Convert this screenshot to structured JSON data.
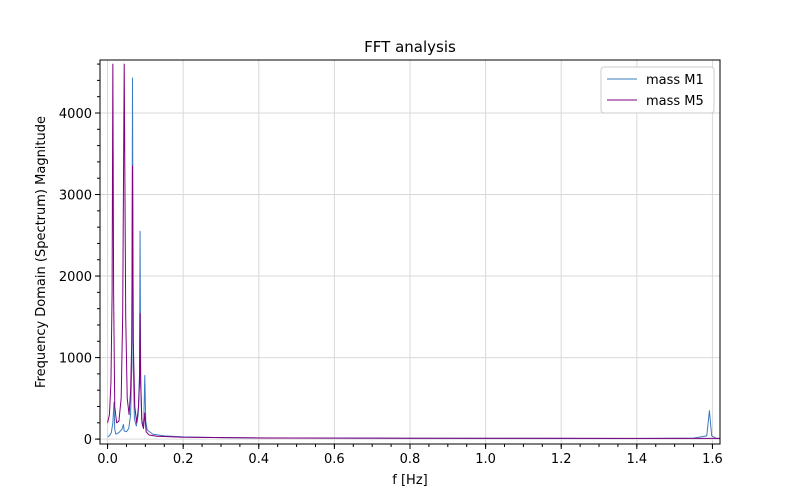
{
  "chart_data": {
    "type": "line",
    "title": "FFT analysis",
    "xlabel": "f [Hz]",
    "ylabel": "Frequency Domain (Spectrum) Magnitude",
    "xlim": [
      -0.02,
      1.62
    ],
    "ylim": [
      -60,
      4650
    ],
    "xticks": [
      0.0,
      0.2,
      0.4,
      0.6,
      0.8,
      1.0,
      1.2,
      1.4,
      1.6
    ],
    "xtick_labels": [
      "0.0",
      "0.2",
      "0.4",
      "0.6",
      "0.8",
      "1.0",
      "1.2",
      "1.4",
      "1.6"
    ],
    "yticks": [
      0,
      1000,
      2000,
      3000,
      4000
    ],
    "ytick_labels": [
      "0",
      "1000",
      "2000",
      "3000",
      "4000"
    ],
    "grid": true,
    "legend_position": "top-right",
    "series": [
      {
        "name": "mass M1",
        "color": "#3b7bbf",
        "points": [
          [
            0.0,
            30
          ],
          [
            0.005,
            40
          ],
          [
            0.01,
            80
          ],
          [
            0.014,
            200
          ],
          [
            0.017,
            450
          ],
          [
            0.019,
            120
          ],
          [
            0.022,
            60
          ],
          [
            0.03,
            80
          ],
          [
            0.038,
            120
          ],
          [
            0.042,
            180
          ],
          [
            0.044,
            100
          ],
          [
            0.05,
            90
          ],
          [
            0.056,
            130
          ],
          [
            0.061,
            300
          ],
          [
            0.064,
            900
          ],
          [
            0.066,
            4430
          ],
          [
            0.068,
            900
          ],
          [
            0.071,
            250
          ],
          [
            0.076,
            160
          ],
          [
            0.081,
            300
          ],
          [
            0.0845,
            800
          ],
          [
            0.086,
            2550
          ],
          [
            0.0875,
            800
          ],
          [
            0.09,
            250
          ],
          [
            0.093,
            160
          ],
          [
            0.096,
            250
          ],
          [
            0.0985,
            780
          ],
          [
            0.101,
            220
          ],
          [
            0.105,
            110
          ],
          [
            0.12,
            60
          ],
          [
            0.15,
            40
          ],
          [
            0.2,
            28
          ],
          [
            0.3,
            18
          ],
          [
            0.5,
            13
          ],
          [
            0.8,
            10
          ],
          [
            1.0,
            9
          ],
          [
            1.2,
            8
          ],
          [
            1.4,
            8
          ],
          [
            1.55,
            12
          ],
          [
            1.585,
            40
          ],
          [
            1.592,
            350
          ],
          [
            1.598,
            40
          ],
          [
            1.61,
            10
          ],
          [
            1.62,
            8
          ]
        ]
      },
      {
        "name": "mass M5",
        "color": "#800080",
        "points": [
          [
            0.0,
            200
          ],
          [
            0.005,
            300
          ],
          [
            0.009,
            700
          ],
          [
            0.012,
            1800
          ],
          [
            0.014,
            4600
          ],
          [
            0.016,
            1800
          ],
          [
            0.019,
            400
          ],
          [
            0.024,
            200
          ],
          [
            0.03,
            220
          ],
          [
            0.036,
            500
          ],
          [
            0.04,
            1500
          ],
          [
            0.044,
            4600
          ],
          [
            0.048,
            1500
          ],
          [
            0.052,
            500
          ],
          [
            0.057,
            300
          ],
          [
            0.061,
            600
          ],
          [
            0.064,
            1200
          ],
          [
            0.066,
            3350
          ],
          [
            0.068,
            1200
          ],
          [
            0.072,
            400
          ],
          [
            0.077,
            200
          ],
          [
            0.082,
            400
          ],
          [
            0.0845,
            700
          ],
          [
            0.086,
            1540
          ],
          [
            0.0875,
            700
          ],
          [
            0.091,
            200
          ],
          [
            0.095,
            130
          ],
          [
            0.0985,
            320
          ],
          [
            0.102,
            90
          ],
          [
            0.11,
            50
          ],
          [
            0.13,
            35
          ],
          [
            0.2,
            22
          ],
          [
            0.4,
            14
          ],
          [
            0.8,
            11
          ],
          [
            1.2,
            10
          ],
          [
            1.6,
            9
          ],
          [
            1.62,
            9
          ]
        ]
      }
    ]
  }
}
